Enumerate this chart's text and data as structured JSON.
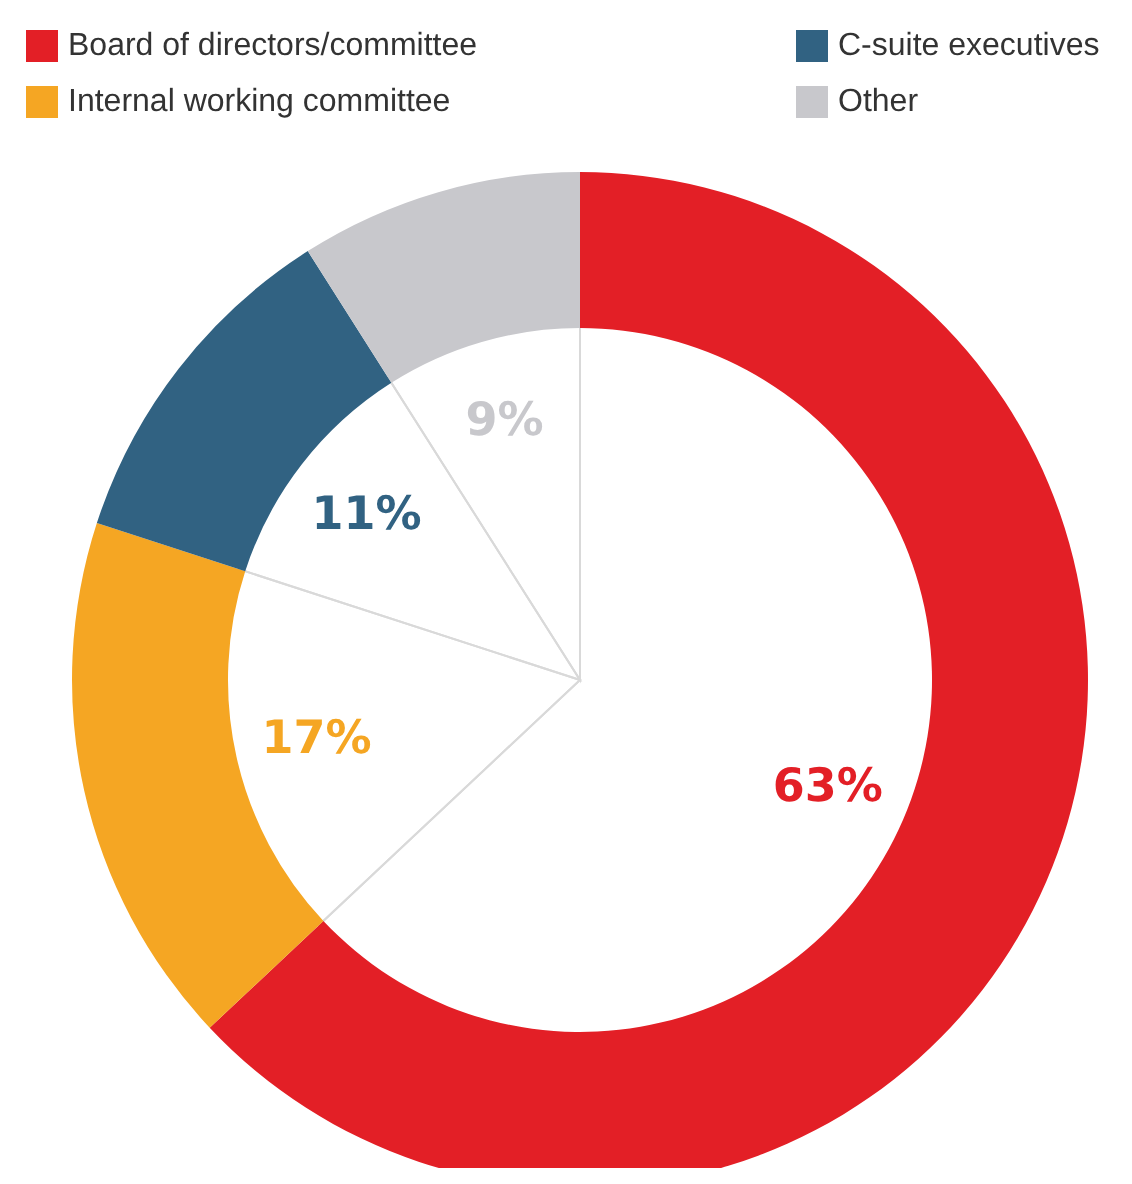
{
  "chart_data": {
    "type": "donut",
    "categories": [
      "Board of directors/committee",
      "Internal working committee",
      "C-suite executives",
      "Other"
    ],
    "values": [
      63,
      17,
      11,
      9
    ],
    "colors": [
      "#e31f26",
      "#f5a623",
      "#316282",
      "#c8c8cc"
    ],
    "value_labels": [
      "63%",
      "17%",
      "11%",
      "9%"
    ],
    "legend": "top"
  }
}
